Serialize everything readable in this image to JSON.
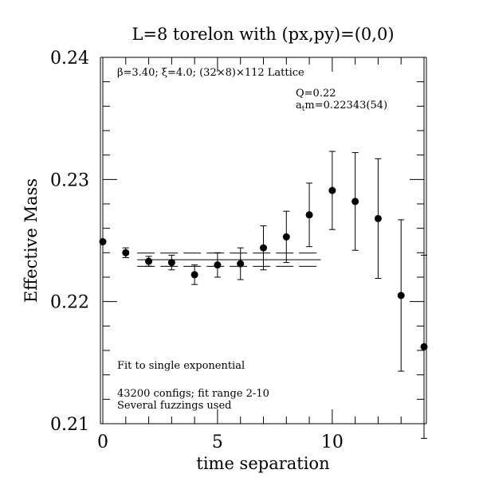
{
  "chart_data": {
    "type": "scatter",
    "title": "L=8 torelon with (px,py)=(0,0)",
    "xlabel": "time separation",
    "ylabel": "Effective Mass",
    "xlim": [
      0,
      14
    ],
    "ylim": [
      0.21,
      0.24
    ],
    "x_ticks": [
      0,
      5,
      10
    ],
    "y_ticks": [
      0.21,
      0.22,
      0.23,
      0.24
    ],
    "y_tick_labels": [
      "0.21",
      "0.22",
      "0.23",
      "0.24"
    ],
    "x_minor_step": 1,
    "y_minor_step": 0.002,
    "grid": false,
    "annotations": {
      "lattice": "β=3.40; ξ=4.0; (32×8)×112 Lattice",
      "q_value": "Q=0.22",
      "mass_prefix": "a",
      "mass_sub": "t",
      "mass_value": "m=0.22343(54)",
      "fit_label": "Fit to single exponential",
      "configs": "43200 configs; fit range 2-10",
      "fuzzings": "Several fuzzings used"
    },
    "points": [
      {
        "x": 0,
        "y": 0.2249,
        "err": 0.0
      },
      {
        "x": 1,
        "y": 0.224,
        "err": 0.0004
      },
      {
        "x": 2,
        "y": 0.2233,
        "err": 0.0004
      },
      {
        "x": 3,
        "y": 0.2232,
        "err": 0.0006
      },
      {
        "x": 4,
        "y": 0.2222,
        "err": 0.0008
      },
      {
        "x": 5,
        "y": 0.223,
        "err": 0.001
      },
      {
        "x": 6,
        "y": 0.2231,
        "err": 0.0013
      },
      {
        "x": 7,
        "y": 0.2244,
        "err": 0.0018
      },
      {
        "x": 8,
        "y": 0.2253,
        "err": 0.0021
      },
      {
        "x": 9,
        "y": 0.2271,
        "err": 0.0026
      },
      {
        "x": 10,
        "y": 0.2291,
        "err": 0.0032
      },
      {
        "x": 11,
        "y": 0.2282,
        "err": 0.004
      },
      {
        "x": 12,
        "y": 0.2268,
        "err": 0.0049
      },
      {
        "x": 13,
        "y": 0.2205,
        "err": 0.0062
      },
      {
        "x": 14,
        "y": 0.2163,
        "err": 0.0075
      }
    ],
    "fit": {
      "x_start": 1.5,
      "x_end": 9.5,
      "value": 0.22343,
      "error": 0.00054
    }
  }
}
